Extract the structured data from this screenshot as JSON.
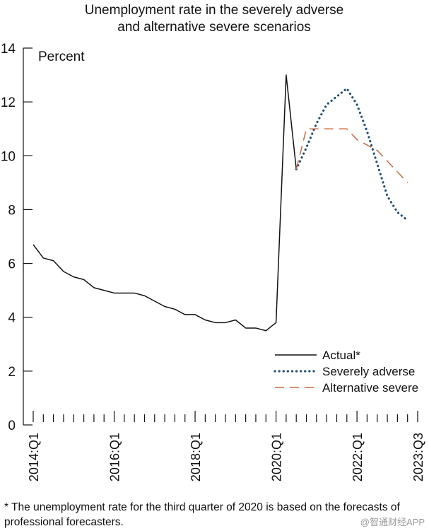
{
  "chart_data": {
    "type": "line",
    "title_lines": [
      "Unemployment rate in the severely adverse",
      "and alternative severe scenarios"
    ],
    "ylabel": "Percent",
    "xlabel": "",
    "ylim": [
      0,
      14
    ],
    "yticks": [
      0,
      2,
      4,
      6,
      8,
      10,
      12,
      14
    ],
    "x_tick_count": 39,
    "x_labels": [
      {
        "index": 0,
        "label": "2014:Q1"
      },
      {
        "index": 8,
        "label": "2016:Q1"
      },
      {
        "index": 16,
        "label": "2018:Q1"
      },
      {
        "index": 24,
        "label": "2020:Q1"
      },
      {
        "index": 32,
        "label": "2022:Q1"
      },
      {
        "index": 38,
        "label": "2023:Q3"
      }
    ],
    "series": [
      {
        "name": "Actual*",
        "style": "solid",
        "color": "#111111",
        "start_index": 0,
        "values": [
          6.7,
          6.2,
          6.1,
          5.7,
          5.5,
          5.4,
          5.1,
          5.0,
          4.9,
          4.9,
          4.9,
          4.8,
          4.6,
          4.4,
          4.3,
          4.1,
          4.1,
          3.9,
          3.8,
          3.8,
          3.9,
          3.6,
          3.6,
          3.5,
          3.8,
          13.0,
          9.5
        ]
      },
      {
        "name": "Severely adverse",
        "style": "dotted",
        "color": "#1f4e79",
        "start_index": 26,
        "values": [
          9.5,
          10.3,
          11.2,
          11.9,
          12.2,
          12.5,
          11.9,
          10.9,
          9.7,
          8.5,
          7.9,
          7.6
        ]
      },
      {
        "name": "Alternative severe",
        "style": "dashed",
        "color": "#c96a3f",
        "start_index": 26,
        "values": [
          9.5,
          11.0,
          11.0,
          11.0,
          11.0,
          11.0,
          10.6,
          10.4,
          10.2,
          9.8,
          9.4,
          9.0
        ]
      }
    ],
    "legend": {
      "position": "bottom-right",
      "entries": [
        "Actual*",
        "Severely adverse",
        "Alternative severe"
      ]
    }
  },
  "footnote": "* The unemployment rate for the third quarter of 2020 is based on the forecasts of professional forecasters.",
  "watermark": "@智通财经APP"
}
